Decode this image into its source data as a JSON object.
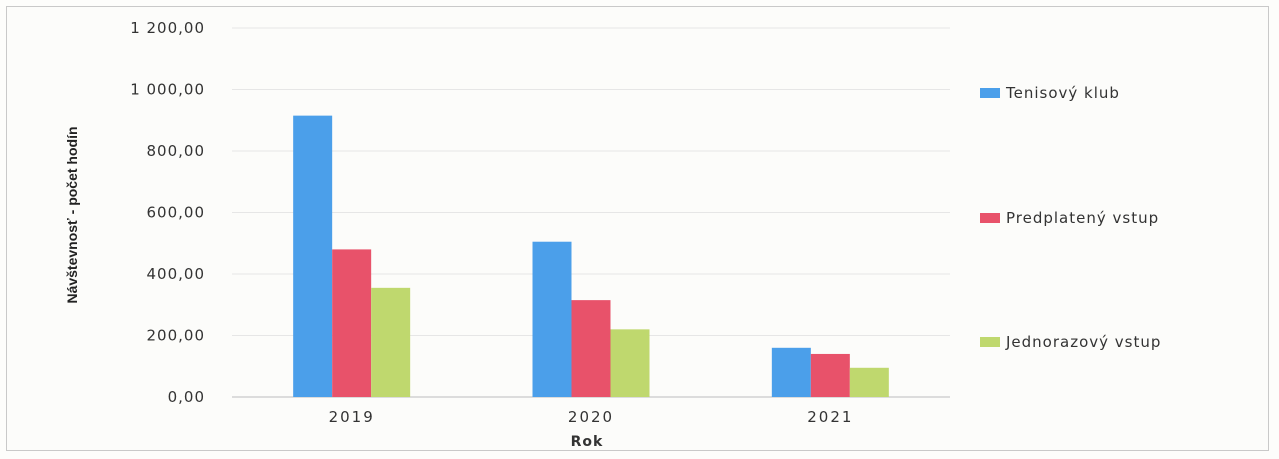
{
  "chart_data": {
    "type": "bar",
    "title": "",
    "xlabel": "Rok",
    "ylabel": "Návštevnosť - počet hodín",
    "categories": [
      "2019",
      "2020",
      "2021"
    ],
    "series": [
      {
        "name": "Tenisový klub",
        "values": [
          915,
          505,
          160
        ]
      },
      {
        "name": "Predplatený vstup",
        "values": [
          480,
          315,
          140
        ]
      },
      {
        "name": "Jednorazový vstup",
        "values": [
          355,
          220,
          95
        ]
      }
    ],
    "ylim": [
      0,
      1200
    ],
    "yticks": [
      "0,00",
      "200,00",
      "400,00",
      "600,00",
      "800,00",
      "1 000,00",
      "1 200,00"
    ],
    "grid": true,
    "legend_position": "right",
    "colors": [
      "#4b9fea",
      "#e8526a",
      "#bfd86e"
    ]
  }
}
